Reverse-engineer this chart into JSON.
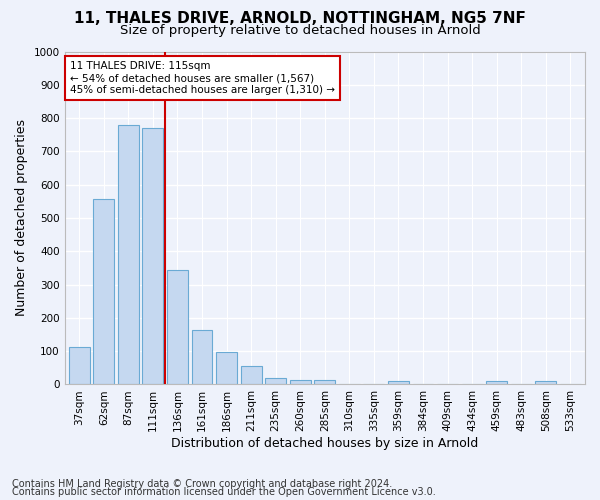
{
  "title1": "11, THALES DRIVE, ARNOLD, NOTTINGHAM, NG5 7NF",
  "title2": "Size of property relative to detached houses in Arnold",
  "xlabel": "Distribution of detached houses by size in Arnold",
  "ylabel": "Number of detached properties",
  "categories": [
    "37sqm",
    "62sqm",
    "87sqm",
    "111sqm",
    "136sqm",
    "161sqm",
    "186sqm",
    "211sqm",
    "235sqm",
    "260sqm",
    "285sqm",
    "310sqm",
    "335sqm",
    "359sqm",
    "384sqm",
    "409sqm",
    "434sqm",
    "459sqm",
    "483sqm",
    "508sqm",
    "533sqm"
  ],
  "values": [
    112,
    557,
    778,
    770,
    343,
    163,
    97,
    55,
    18,
    13,
    13,
    0,
    0,
    10,
    0,
    0,
    0,
    9,
    0,
    9,
    0
  ],
  "bar_color": "#c5d8f0",
  "bar_edge_color": "#6aaad4",
  "vline_x": 3.5,
  "vline_color": "#cc0000",
  "annotation_text": "11 THALES DRIVE: 115sqm\n← 54% of detached houses are smaller (1,567)\n45% of semi-detached houses are larger (1,310) →",
  "annotation_box_color": "#ffffff",
  "annotation_box_edge": "#cc0000",
  "ylim": [
    0,
    1000
  ],
  "yticks": [
    0,
    100,
    200,
    300,
    400,
    500,
    600,
    700,
    800,
    900,
    1000
  ],
  "footer1": "Contains HM Land Registry data © Crown copyright and database right 2024.",
  "footer2": "Contains public sector information licensed under the Open Government Licence v3.0.",
  "bg_color": "#eef2fb",
  "plot_bg_color": "#eef2fb",
  "grid_color": "#ffffff",
  "title1_fontsize": 11,
  "title2_fontsize": 9.5,
  "axis_label_fontsize": 9,
  "tick_fontsize": 7.5,
  "footer_fontsize": 7,
  "ann_fontsize": 7.5
}
